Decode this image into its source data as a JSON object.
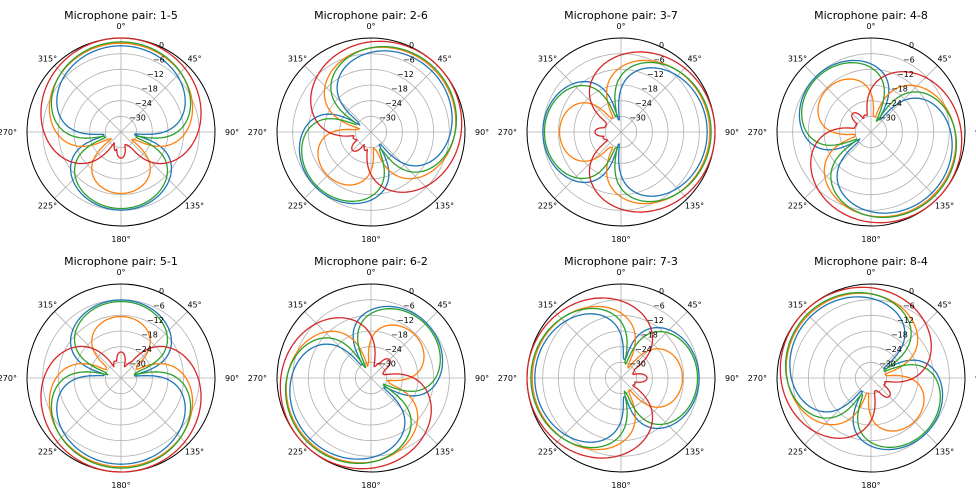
{
  "figure": {
    "colors": [
      "#1f77b4",
      "#ff7f0e",
      "#2ca02c",
      "#d62728"
    ]
  },
  "chart_data": [
    {
      "type": "polar",
      "title": "Microphone pair: 1-5",
      "angle_ticks": [
        "0°",
        "45°",
        "90°",
        "135°",
        "180°",
        "225°",
        "270°",
        "315°"
      ],
      "radial_ticks": [
        "0",
        "−6",
        "−12",
        "−18",
        "−24",
        "−30"
      ],
      "rlim": [
        -36,
        0
      ],
      "theta_zero": "top",
      "theta_direction": "clockwise",
      "grid": true,
      "pattern": {
        "look_deg": 0,
        "d_blue": 1.0,
        "d_orange": 0.6,
        "d_green": 0.85,
        "d_red": 0.35
      },
      "series": [
        {
          "color": "#1f77b4",
          "offset_db": -3
        },
        {
          "color": "#ff7f0e",
          "offset_db": -2
        },
        {
          "color": "#2ca02c",
          "offset_db": -1.5
        },
        {
          "color": "#d62728",
          "offset_db": 0
        }
      ]
    },
    {
      "type": "polar",
      "title": "Microphone pair: 2-6",
      "angle_ticks": [
        "0°",
        "45°",
        "90°",
        "135°",
        "180°",
        "225°",
        "270°",
        "315°"
      ],
      "radial_ticks": [
        "0",
        "−6",
        "−12",
        "−18",
        "−24",
        "−30"
      ],
      "rlim": [
        -36,
        0
      ],
      "theta_zero": "top",
      "theta_direction": "clockwise",
      "grid": true,
      "pattern": {
        "look_deg": 45,
        "d_blue": 1.0,
        "d_orange": 0.6,
        "d_green": 0.85,
        "d_red": 0.35
      },
      "series": [
        {
          "color": "#1f77b4",
          "offset_db": -3
        },
        {
          "color": "#ff7f0e",
          "offset_db": -2
        },
        {
          "color": "#2ca02c",
          "offset_db": -1.5
        },
        {
          "color": "#d62728",
          "offset_db": 0
        }
      ]
    },
    {
      "type": "polar",
      "title": "Microphone pair: 3-7",
      "angle_ticks": [
        "0°",
        "45°",
        "90°",
        "135°",
        "180°",
        "225°",
        "270°",
        "315°"
      ],
      "radial_ticks": [
        "0",
        "−6",
        "−12",
        "−18",
        "−24",
        "−30"
      ],
      "rlim": [
        -36,
        0
      ],
      "theta_zero": "top",
      "theta_direction": "clockwise",
      "grid": true,
      "pattern": {
        "look_deg": 90,
        "d_blue": 1.0,
        "d_orange": 0.6,
        "d_green": 0.85,
        "d_red": 0.35
      },
      "series": [
        {
          "color": "#1f77b4",
          "offset_db": -3
        },
        {
          "color": "#ff7f0e",
          "offset_db": -2
        },
        {
          "color": "#2ca02c",
          "offset_db": -1.5
        },
        {
          "color": "#d62728",
          "offset_db": 0
        }
      ]
    },
    {
      "type": "polar",
      "title": "Microphone pair: 4-8",
      "angle_ticks": [
        "0°",
        "45°",
        "90°",
        "135°",
        "180°",
        "225°",
        "270°",
        "315°"
      ],
      "radial_ticks": [
        "0",
        "−6",
        "−12",
        "−18",
        "−24",
        "−30"
      ],
      "rlim": [
        -36,
        0
      ],
      "theta_zero": "top",
      "theta_direction": "clockwise",
      "grid": true,
      "pattern": {
        "look_deg": 135,
        "d_blue": 1.0,
        "d_orange": 0.6,
        "d_green": 0.85,
        "d_red": 0.35
      },
      "series": [
        {
          "color": "#1f77b4",
          "offset_db": -3
        },
        {
          "color": "#ff7f0e",
          "offset_db": -2
        },
        {
          "color": "#2ca02c",
          "offset_db": -1.5
        },
        {
          "color": "#d62728",
          "offset_db": 0
        }
      ]
    },
    {
      "type": "polar",
      "title": "Microphone pair: 5-1",
      "angle_ticks": [
        "0°",
        "45°",
        "90°",
        "135°",
        "180°",
        "225°",
        "270°",
        "315°"
      ],
      "radial_ticks": [
        "0",
        "−6",
        "−12",
        "−18",
        "−24",
        "−30"
      ],
      "rlim": [
        -36,
        0
      ],
      "theta_zero": "top",
      "theta_direction": "clockwise",
      "grid": true,
      "pattern": {
        "look_deg": 180,
        "d_blue": 1.0,
        "d_orange": 0.6,
        "d_green": 0.85,
        "d_red": 0.35
      },
      "series": [
        {
          "color": "#1f77b4",
          "offset_db": -3
        },
        {
          "color": "#ff7f0e",
          "offset_db": -2
        },
        {
          "color": "#2ca02c",
          "offset_db": -1.5
        },
        {
          "color": "#d62728",
          "offset_db": 0
        }
      ]
    },
    {
      "type": "polar",
      "title": "Microphone pair: 6-2",
      "angle_ticks": [
        "0°",
        "45°",
        "90°",
        "135°",
        "180°",
        "225°",
        "270°",
        "315°"
      ],
      "radial_ticks": [
        "0",
        "−6",
        "−12",
        "−18",
        "−24",
        "−30"
      ],
      "rlim": [
        -36,
        0
      ],
      "theta_zero": "top",
      "theta_direction": "clockwise",
      "grid": true,
      "pattern": {
        "look_deg": 225,
        "d_blue": 1.0,
        "d_orange": 0.6,
        "d_green": 0.85,
        "d_red": 0.35
      },
      "series": [
        {
          "color": "#1f77b4",
          "offset_db": -3
        },
        {
          "color": "#ff7f0e",
          "offset_db": -2
        },
        {
          "color": "#2ca02c",
          "offset_db": -1.5
        },
        {
          "color": "#d62728",
          "offset_db": 0
        }
      ]
    },
    {
      "type": "polar",
      "title": "Microphone pair: 7-3",
      "angle_ticks": [
        "0°",
        "45°",
        "90°",
        "135°",
        "180°",
        "225°",
        "270°",
        "315°"
      ],
      "radial_ticks": [
        "0",
        "−6",
        "−12",
        "−18",
        "−24",
        "−30"
      ],
      "rlim": [
        -36,
        0
      ],
      "theta_zero": "top",
      "theta_direction": "clockwise",
      "grid": true,
      "pattern": {
        "look_deg": 270,
        "d_blue": 1.0,
        "d_orange": 0.6,
        "d_green": 0.85,
        "d_red": 0.35
      },
      "series": [
        {
          "color": "#1f77b4",
          "offset_db": -3
        },
        {
          "color": "#ff7f0e",
          "offset_db": -2
        },
        {
          "color": "#2ca02c",
          "offset_db": -1.5
        },
        {
          "color": "#d62728",
          "offset_db": 0
        }
      ]
    },
    {
      "type": "polar",
      "title": "Microphone pair: 8-4",
      "angle_ticks": [
        "0°",
        "45°",
        "90°",
        "135°",
        "180°",
        "225°",
        "270°",
        "315°"
      ],
      "radial_ticks": [
        "0",
        "−6",
        "−12",
        "−18",
        "−24",
        "−30"
      ],
      "rlim": [
        -36,
        0
      ],
      "theta_zero": "top",
      "theta_direction": "clockwise",
      "grid": true,
      "pattern": {
        "look_deg": 315,
        "d_blue": 1.0,
        "d_orange": 0.6,
        "d_green": 0.85,
        "d_red": 0.35
      },
      "series": [
        {
          "color": "#1f77b4",
          "offset_db": -3
        },
        {
          "color": "#ff7f0e",
          "offset_db": -2
        },
        {
          "color": "#2ca02c",
          "offset_db": -1.5
        },
        {
          "color": "#d62728",
          "offset_db": 0
        }
      ]
    }
  ]
}
